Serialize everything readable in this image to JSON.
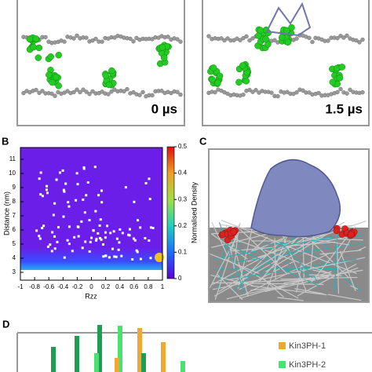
{
  "panel_a": {
    "left_time": "0 µs",
    "right_time": "1.5 µs"
  },
  "panel_b": {
    "label": "B",
    "x_label": "Rzz",
    "y_label": "Distance (nm)",
    "x_ticks": [
      -1,
      -0.8,
      -0.6,
      -0.4,
      -0.2,
      0,
      0.2,
      0.4,
      0.6,
      0.8,
      1
    ],
    "y_ticks": [
      3,
      4,
      5,
      6,
      7,
      8,
      9,
      10,
      11
    ],
    "colorbar_label": "Normalised Density",
    "colorbar_ticks": [
      0,
      0.1,
      0.2,
      0.3,
      0.4,
      0.5
    ]
  },
  "panel_c": {
    "label": "C"
  },
  "panel_d": {
    "label": "D",
    "legend": [
      "Kin3PH-1",
      "Kin3PH-2"
    ]
  }
}
